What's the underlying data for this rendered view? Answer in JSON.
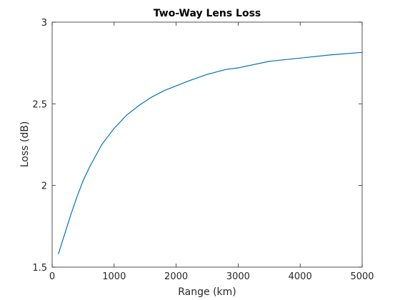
{
  "chart_data": {
    "type": "line",
    "title": "Two-Way Lens Loss",
    "xlabel": "Range (km)",
    "ylabel": "Loss (dB)",
    "xlim": [
      0,
      5000
    ],
    "ylim": [
      1.5,
      3
    ],
    "xticks": [
      "0",
      "1000",
      "2000",
      "3000",
      "4000",
      "5000"
    ],
    "yticks": [
      "1.5",
      "2",
      "2.5",
      "3"
    ],
    "grid": false,
    "line_color": "#0072bd",
    "series": [
      {
        "x": [
          100,
          200,
          300,
          400,
          500,
          600,
          700,
          800,
          900,
          1000,
          1100,
          1200,
          1400,
          1600,
          1800,
          2000,
          2200,
          2500,
          2800,
          3000,
          3500,
          4000,
          4500,
          5000
        ],
        "values": [
          1.58,
          1.7,
          1.82,
          1.93,
          2.03,
          2.11,
          2.18,
          2.25,
          2.3,
          2.35,
          2.39,
          2.43,
          2.49,
          2.54,
          2.58,
          2.61,
          2.64,
          2.68,
          2.71,
          2.72,
          2.76,
          2.78,
          2.8,
          2.815
        ]
      }
    ]
  }
}
